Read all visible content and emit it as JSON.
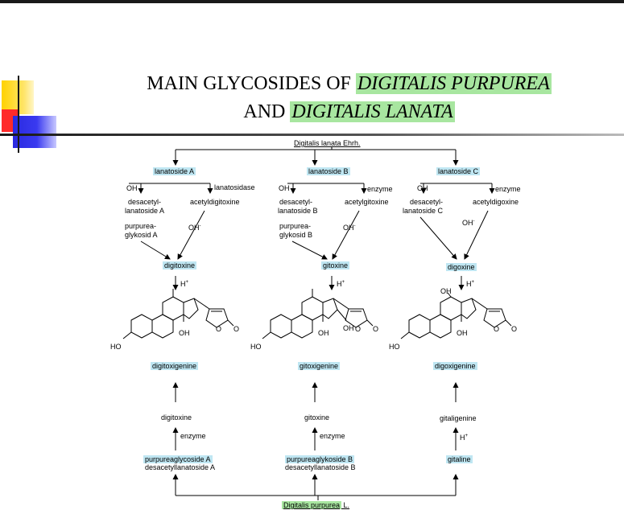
{
  "title": {
    "line1_plain": "MAIN GLYCOSIDES OF ",
    "line1_highlight": "DIGITALIS PURPUREA",
    "line2_plain": "AND ",
    "line2_highlight": "DIGITALIS LANATA"
  },
  "diagram": {
    "source_top": "Digitalis lanata Ehrh.",
    "source_bottom_highlight": "Digitalis purpurea",
    "source_bottom_suffix": " L.",
    "col_a": {
      "lanatoside": "lanatoside A",
      "oh_left": "OH",
      "enzyme_label": "lanatosidase",
      "desacetyl": "desacetyl-",
      "desacetyl2": "lanatoside A",
      "acetyl": "acetyldigitoxine",
      "purpurea": "purpurea-",
      "purpurea2": "glykosid A",
      "oh_right": "OH",
      "product": "digitoxine",
      "acid": "H",
      "aglycone": "digitoxigenine",
      "lower_glycoside": "digitoxine",
      "lower_enzyme": "enzyme",
      "bottom1": "purpureaglycoside A",
      "bottom2": "desacetyllanatoside A"
    },
    "col_b": {
      "lanatoside": "lanatoside B",
      "oh_left": "OH",
      "enzyme_label": "enzyme",
      "desacetyl": "desacetyl-",
      "desacetyl2": "lanatoside B",
      "acetyl": "acetylgitoxine",
      "purpurea": "purpurea-",
      "purpurea2": "glykosid B",
      "oh_right": "OH",
      "product": "gitoxine",
      "acid": "H",
      "aglycone": "gitoxigenine",
      "lower_glycoside": "gitoxine",
      "lower_enzyme": "enzyme",
      "bottom1": "purpureaglykoside B",
      "bottom2": "desacetyllanatoside B"
    },
    "col_c": {
      "lanatoside": "lanatoside C",
      "oh_left": "OH",
      "enzyme_label": "enzyme",
      "desacetyl": "desacetyl-",
      "desacetyl2": "lanatoside C",
      "acetyl": "acetyldigoxine",
      "oh_right": "OH",
      "product": "digoxine",
      "acid": "H",
      "aglycone": "digoxigenine",
      "lower_glycoside": "gitaligenine",
      "lower_acid": "H",
      "bottom1": "gitaline"
    },
    "struct_labels": {
      "ho": "HO",
      "oh": "OH",
      "o": "O"
    }
  }
}
